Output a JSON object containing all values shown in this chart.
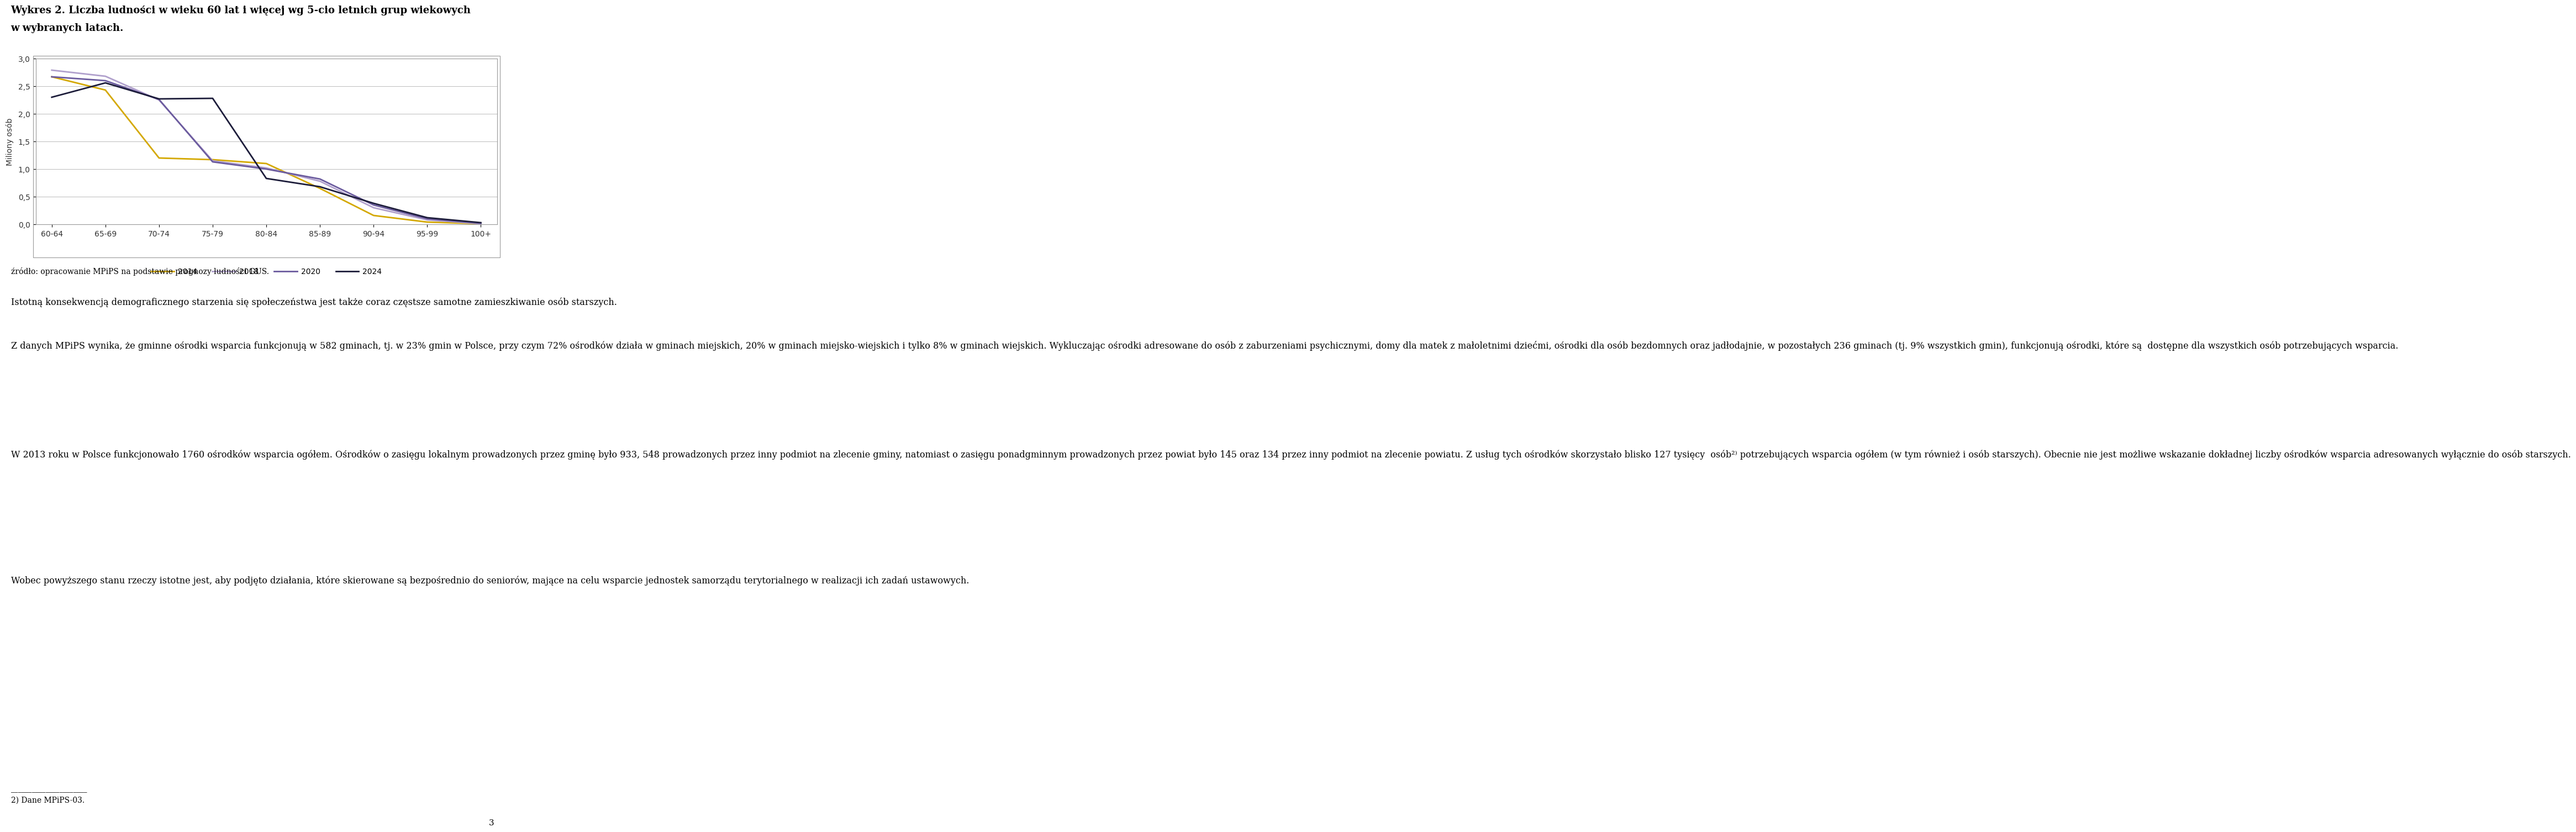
{
  "title_line1": "Wykres 2. Liczba ludności w wieku 60 lat i więcej wg 5-cio letnich grup wiekowych",
  "title_line2": "w wybranych latach.",
  "categories": [
    "60-64",
    "65-69",
    "70-74",
    "75-79",
    "80-84",
    "85-89",
    "90-94",
    "95-99",
    "100+"
  ],
  "series": {
    "2014": [
      2.67,
      2.43,
      1.2,
      1.17,
      1.1,
      0.65,
      0.16,
      0.04,
      0.01
    ],
    "2018": [
      2.79,
      2.68,
      2.25,
      1.15,
      1.02,
      0.78,
      0.3,
      0.08,
      0.01
    ],
    "2020": [
      2.67,
      2.6,
      2.26,
      1.13,
      1.0,
      0.82,
      0.35,
      0.1,
      0.02
    ],
    "2024": [
      2.3,
      2.56,
      2.27,
      2.28,
      0.83,
      0.68,
      0.38,
      0.12,
      0.03
    ]
  },
  "colors": {
    "2014": "#D4A800",
    "2018": "#B0A0CC",
    "2020": "#6B5B9E",
    "2024": "#1C1C3A"
  },
  "ylabel": "Miliony osób",
  "ylim": [
    0.0,
    3.0
  ],
  "yticks": [
    0.0,
    0.5,
    1.0,
    1.5,
    2.0,
    2.5,
    3.0
  ],
  "source_text": "źródło: opracowanie MPiPS na podstawie prognozy ludności GUS.",
  "para1": "Istotną konsekwencją demograficznego starzenia się społeczeństwa jest także coraz częstsze samotne zamieszkiwanie osób starszych.",
  "para2": "Z danych MPiPS wynika, że gminne ośrodki wsparcia funkcjonują w 582 gminach, tj. w 23% gmin w Polsce, przy czym 72% ośrodków działa w gminach miejskich, 20% w gminach miejsko-wiejskich i tylko 8% w gminach wiejskich. Wykluczając ośrodki adresowane do osób z zaburzeniami psychicznymi, domy dla matek z małoletnimi dziećmi, ośrodki dla osób bezdomnych oraz jadłodajnie, w pozostałych 236 gminach (tj. 9% wszystkich gmin), funkcjonują ośrodki, które są  dostępne dla wszystkich osób potrzebujących wsparcia.",
  "para3": "W 2013 roku w Polsce funkcjonowało 1760 ośrodków wsparcia ogółem. Ośrodków o zasięgu lokalnym prowadzonych przez gminę było 933, 548 prowadzonych przez inny podmiot na zlecenie gminy, natomiast o zasięgu ponadgminnym prowadzonych przez powiat było 145 oraz 134 przez inny podmiot na zlecenie powiatu. Z usług tych ośrodków skorzystało blisko 127 tysięcy  osób²⁾ potrzebujących wsparcia ogółem (w tym również i osób starszych). Obecnie nie jest możliwe wskazanie dokładnej liczby ośrodków wsparcia adresowanych wyłącznie do osób starszych.",
  "para4": "Wobec powyższego stanu rzeczy istotne jest, aby podjęto działania, które skierowane są bezpośrednio do seniorów, mające na celu wsparcie jednostek samorządu terytorialnego w realizacji ich zadań ustawowych.",
  "footnote_line": "2) Dane MPiPS-03.",
  "page_number": "3",
  "background_color": "#FFFFFF",
  "grid_color": "#BBBBBB",
  "line_width": 2.0,
  "chart_border_color": "#999999"
}
